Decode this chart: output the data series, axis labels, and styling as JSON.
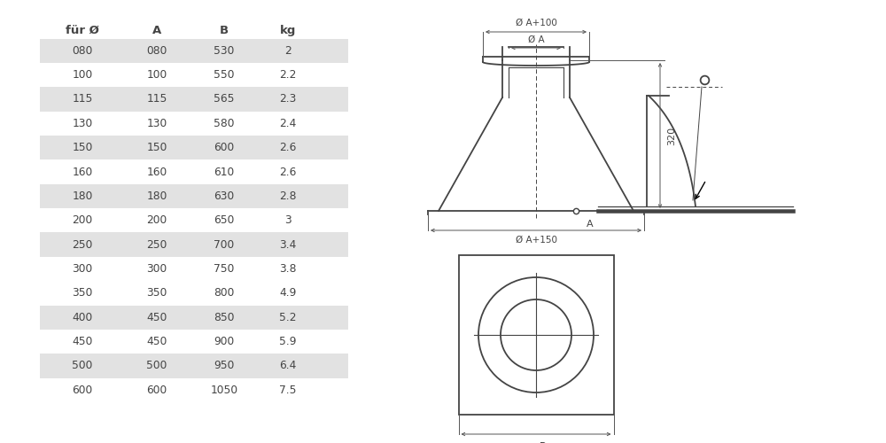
{
  "table_headers": [
    "für Ø",
    "A",
    "B",
    "kg"
  ],
  "table_rows": [
    [
      "080",
      "080",
      "530",
      "2"
    ],
    [
      "100",
      "100",
      "550",
      "2.2"
    ],
    [
      "115",
      "115",
      "565",
      "2.3"
    ],
    [
      "130",
      "130",
      "580",
      "2.4"
    ],
    [
      "150",
      "150",
      "600",
      "2.6"
    ],
    [
      "160",
      "160",
      "610",
      "2.6"
    ],
    [
      "180",
      "180",
      "630",
      "2.8"
    ],
    [
      "200",
      "200",
      "650",
      "3"
    ],
    [
      "250",
      "250",
      "700",
      "3.4"
    ],
    [
      "300",
      "300",
      "750",
      "3.8"
    ],
    [
      "350",
      "350",
      "800",
      "4.9"
    ],
    [
      "400",
      "450",
      "850",
      "5.2"
    ],
    [
      "450",
      "450",
      "900",
      "5.9"
    ],
    [
      "500",
      "500",
      "950",
      "6.4"
    ],
    [
      "600",
      "600",
      "1050",
      "7.5"
    ]
  ],
  "shaded_rows": [
    0,
    2,
    4,
    6,
    8,
    11,
    13
  ],
  "bg_color": "#ffffff",
  "row_shade_color": "#e2e2e2",
  "line_color": "#444444",
  "text_color": "#444444",
  "dim_color": "#555555"
}
